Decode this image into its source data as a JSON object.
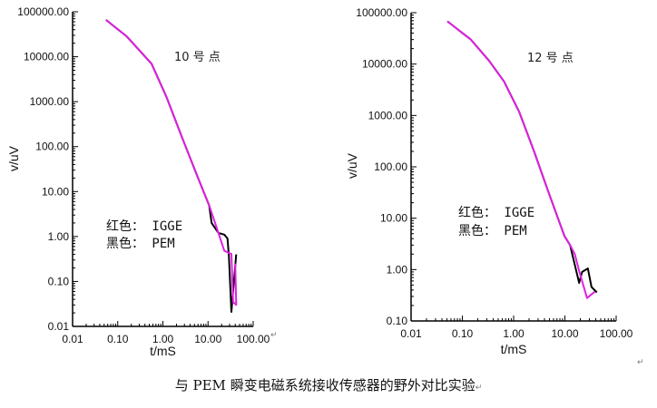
{
  "caption": "与 PEM 瞬变电磁系统接收传感器的野外对比实验",
  "paragraph_mark": "↵",
  "colors": {
    "igge": "#e020e0",
    "pem": "#000000",
    "axis": "#000000"
  },
  "chart_data": [
    {
      "type": "line",
      "title": "10 号  点",
      "xlabel": "t/mS",
      "ylabel": "v/uV",
      "xscale": "log",
      "yscale": "log",
      "xlim": [
        0.01,
        100
      ],
      "ylim": [
        0.01,
        100000
      ],
      "xticks": [
        "0.01",
        "0.10",
        "1.00",
        "10.00",
        "100.00"
      ],
      "yticks": [
        "0.01",
        "0.10",
        "1.00",
        "10.00",
        "100.00",
        "1000.00",
        "10000.00",
        "100000.00"
      ],
      "legend": [
        "红色： IGGE",
        "黑色： PEM"
      ],
      "legend_placement": "lower-left",
      "series": [
        {
          "name": "IGGE",
          "color": "#e020e0",
          "x": [
            0.055,
            0.16,
            0.56,
            1.2,
            2.6,
            5.7,
            10.6,
            17,
            23,
            33,
            36,
            42,
            40
          ],
          "y": [
            66000,
            28000,
            7000,
            1280,
            170,
            23,
            4.9,
            1.2,
            0.48,
            0.41,
            0.035,
            0.03,
            0.25
          ]
        },
        {
          "name": "PEM",
          "color": "#000000",
          "x": [
            0.055,
            0.16,
            0.56,
            1.2,
            2.6,
            5.7,
            10.6,
            12,
            17,
            23,
            27,
            29,
            33,
            42
          ],
          "y": [
            66000,
            28000,
            7000,
            1280,
            170,
            23,
            4.9,
            2.0,
            1.2,
            1.1,
            0.9,
            0.35,
            0.021,
            0.4
          ]
        }
      ]
    },
    {
      "type": "line",
      "title": "12 号  点",
      "xlabel": "t/mS",
      "ylabel": "v/uV",
      "xscale": "log",
      "yscale": "log",
      "xlim": [
        0.01,
        100
      ],
      "ylim": [
        0.1,
        100000
      ],
      "xticks": [
        "0.01",
        "0.10",
        "1.00",
        "10.00",
        "100.00"
      ],
      "yticks": [
        "0.10",
        "1.00",
        "10.00",
        "100.00",
        "1000.00",
        "10000.00",
        "100000.00"
      ],
      "legend": [
        "红色： IGGE",
        "黑色： PEM"
      ],
      "legend_placement": "center-left",
      "series": [
        {
          "name": "IGGE",
          "color": "#e020e0",
          "x": [
            0.051,
            0.146,
            0.33,
            0.65,
            1.28,
            2.5,
            4.9,
            9.8,
            12.6,
            15.6,
            19.2,
            27,
            38
          ],
          "y": [
            68000,
            30000,
            11700,
            4600,
            1180,
            200,
            30,
            4.5,
            3.0,
            2.0,
            0.9,
            0.28,
            0.37
          ]
        },
        {
          "name": "PEM",
          "color": "#000000",
          "x": [
            0.051,
            0.146,
            0.33,
            0.65,
            1.28,
            2.5,
            4.9,
            9.8,
            12.6,
            19,
            21.7,
            28,
            33,
            42
          ],
          "y": [
            68000,
            30000,
            11700,
            4600,
            1180,
            200,
            30,
            4.5,
            3.0,
            0.55,
            0.9,
            1.05,
            0.46,
            0.36
          ]
        }
      ]
    }
  ]
}
